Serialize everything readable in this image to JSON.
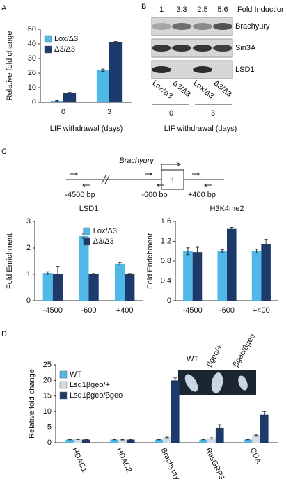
{
  "panels": [
    "A",
    "B",
    "C",
    "D"
  ],
  "blot": {
    "fold_values": [
      1,
      3.3,
      2.5,
      5.6
    ],
    "fold_label": "Fold Induction",
    "rows": [
      "Brachyury",
      "Sin3A",
      "LSD1"
    ],
    "lanes": [
      "Lox/Δ3",
      "Δ3/Δ3",
      "Lox/Δ3",
      "Δ3/Δ3"
    ],
    "groups": [
      "0",
      "3"
    ],
    "xlabel": "LIF withdrawal (days)"
  },
  "diagram": {
    "gene": "Brachyury",
    "exon": "1",
    "positions": [
      "-4500 bp",
      "-600 bp",
      "+400 bp"
    ]
  },
  "embryos": {
    "labels": [
      "WT",
      "βgeo/+",
      "βgeo/βgeo"
    ]
  },
  "chart_data": [
    {
      "type": "bar",
      "ylabel": "Relative fold change",
      "xlabel": "LIF withdrawal (days)",
      "categories": [
        "0",
        "3"
      ],
      "series": [
        {
          "name": "Lox/Δ3",
          "color": "#4fb8e6",
          "values": [
            1,
            22
          ],
          "errors": [
            0.2,
            0.8
          ]
        },
        {
          "name": "Δ3/Δ3",
          "color": "#1c3a6b",
          "values": [
            6.5,
            41
          ],
          "errors": [
            0.3,
            0.6
          ]
        }
      ],
      "ylim": [
        0,
        50
      ],
      "yticks": [
        0,
        10,
        20,
        30,
        40,
        50
      ],
      "legend": "upper left"
    },
    {
      "type": "bar",
      "title": "LSD1",
      "ylabel": "Fold Enrichment",
      "categories": [
        "-4500",
        "-600",
        "+400"
      ],
      "series": [
        {
          "name": "Lox/Δ3",
          "color": "#4fb8e6",
          "values": [
            1.05,
            2.45,
            1.4
          ],
          "errors": [
            0.05,
            0.08,
            0.04
          ]
        },
        {
          "name": "Δ3/Δ3",
          "color": "#1c3a6b",
          "values": [
            1.0,
            1.0,
            1.0
          ],
          "errors": [
            0.3,
            0.03,
            0.03
          ]
        }
      ],
      "ylim": [
        0,
        3
      ],
      "yticks": [
        0,
        1,
        2,
        3
      ],
      "legend": "upper right"
    },
    {
      "type": "bar",
      "title": "H3K4me2",
      "ylabel": "Fold Enrichment",
      "categories": [
        "-4500",
        "-600",
        "+400"
      ],
      "series": [
        {
          "name": "Lox/Δ3",
          "color": "#4fb8e6",
          "values": [
            1.0,
            1.0,
            1.0
          ],
          "errors": [
            0.07,
            0.03,
            0.04
          ]
        },
        {
          "name": "Δ3/Δ3",
          "color": "#1c3a6b",
          "values": [
            0.98,
            1.45,
            1.15
          ],
          "errors": [
            0.1,
            0.03,
            0.08
          ]
        }
      ],
      "ylim": [
        0,
        1.6
      ],
      "yticks": [
        0,
        0.4,
        0.8,
        1.2,
        1.6
      ],
      "legend": false
    },
    {
      "type": "bar",
      "ylabel": "Relative fold change",
      "categories": [
        "HDAC1",
        "HDAC2",
        "Brachyury",
        "RasGRP3",
        "CDA"
      ],
      "series": [
        {
          "name": "WT",
          "color": "#4fb8e6",
          "values": [
            1,
            1,
            1,
            1,
            1
          ],
          "errors": [
            0.05,
            0.05,
            0.05,
            0.05,
            0.05
          ]
        },
        {
          "name": "Lsd1βgeo/+",
          "color": "#d4dbe3",
          "values": [
            1.1,
            1,
            1.8,
            1.5,
            2.5
          ],
          "errors": [
            0.1,
            0.1,
            0.2,
            0.3,
            0.2
          ]
        },
        {
          "name": "Lsd1βgeo/βgeo",
          "color": "#1c3a6b",
          "values": [
            1,
            1,
            20,
            4.7,
            9
          ],
          "errors": [
            0.1,
            0.1,
            0.8,
            1.1,
            1.0
          ]
        }
      ],
      "ylim": [
        0,
        25
      ],
      "yticks": [
        0,
        5,
        10,
        15,
        20,
        25
      ],
      "legend": "upper left"
    }
  ]
}
